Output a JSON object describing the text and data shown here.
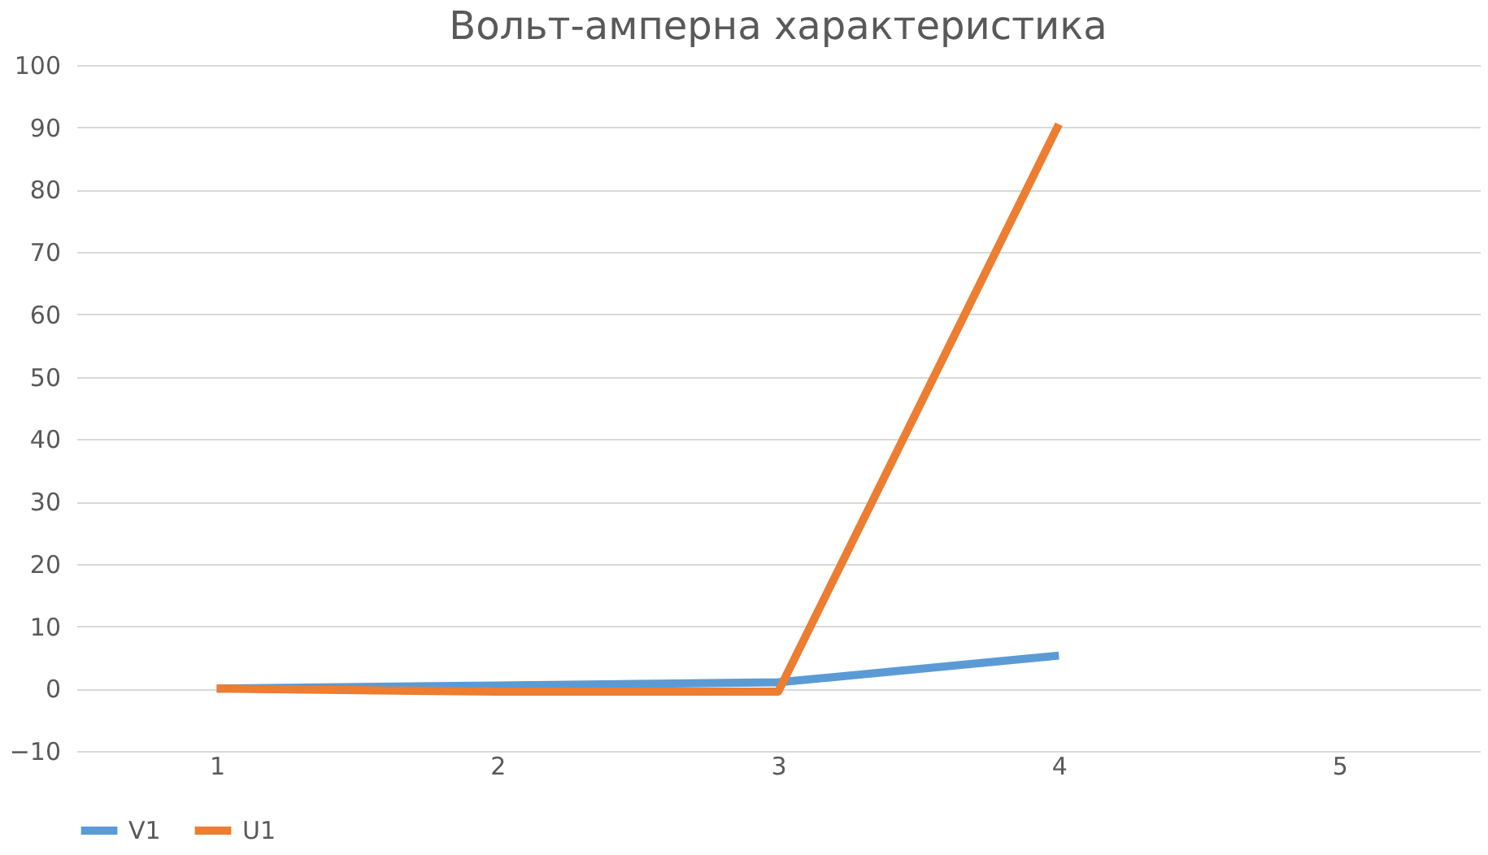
{
  "chart_data": {
    "type": "line",
    "title": "Вольт-амперна характеристика",
    "categories": [
      "1",
      "2",
      "3",
      "4",
      "5"
    ],
    "series": [
      {
        "name": "V1",
        "color": "#5b9bd5",
        "values": [
          0,
          0.5,
          1,
          5.3,
          null
        ]
      },
      {
        "name": "U1",
        "color": "#ed7d31",
        "values": [
          0,
          -0.5,
          -0.5,
          90.5,
          null
        ]
      }
    ],
    "ylim": [
      -10,
      100
    ],
    "yticks": [
      -10,
      0,
      10,
      20,
      30,
      40,
      50,
      60,
      70,
      80,
      90,
      100
    ],
    "grid": "y",
    "legend": "bottom",
    "marker": "none",
    "line_style": "solid"
  }
}
